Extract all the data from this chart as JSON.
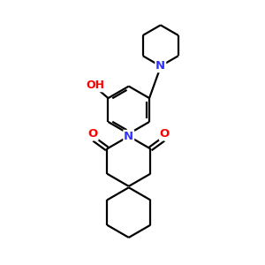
{
  "bg_color": "#ffffff",
  "bond_color": "#000000",
  "N_color": "#3333ff",
  "O_color": "#ff0000",
  "lw": 1.6,
  "fs": 8.5,
  "xlim": [
    0,
    10
  ],
  "ylim": [
    0,
    10.5
  ]
}
